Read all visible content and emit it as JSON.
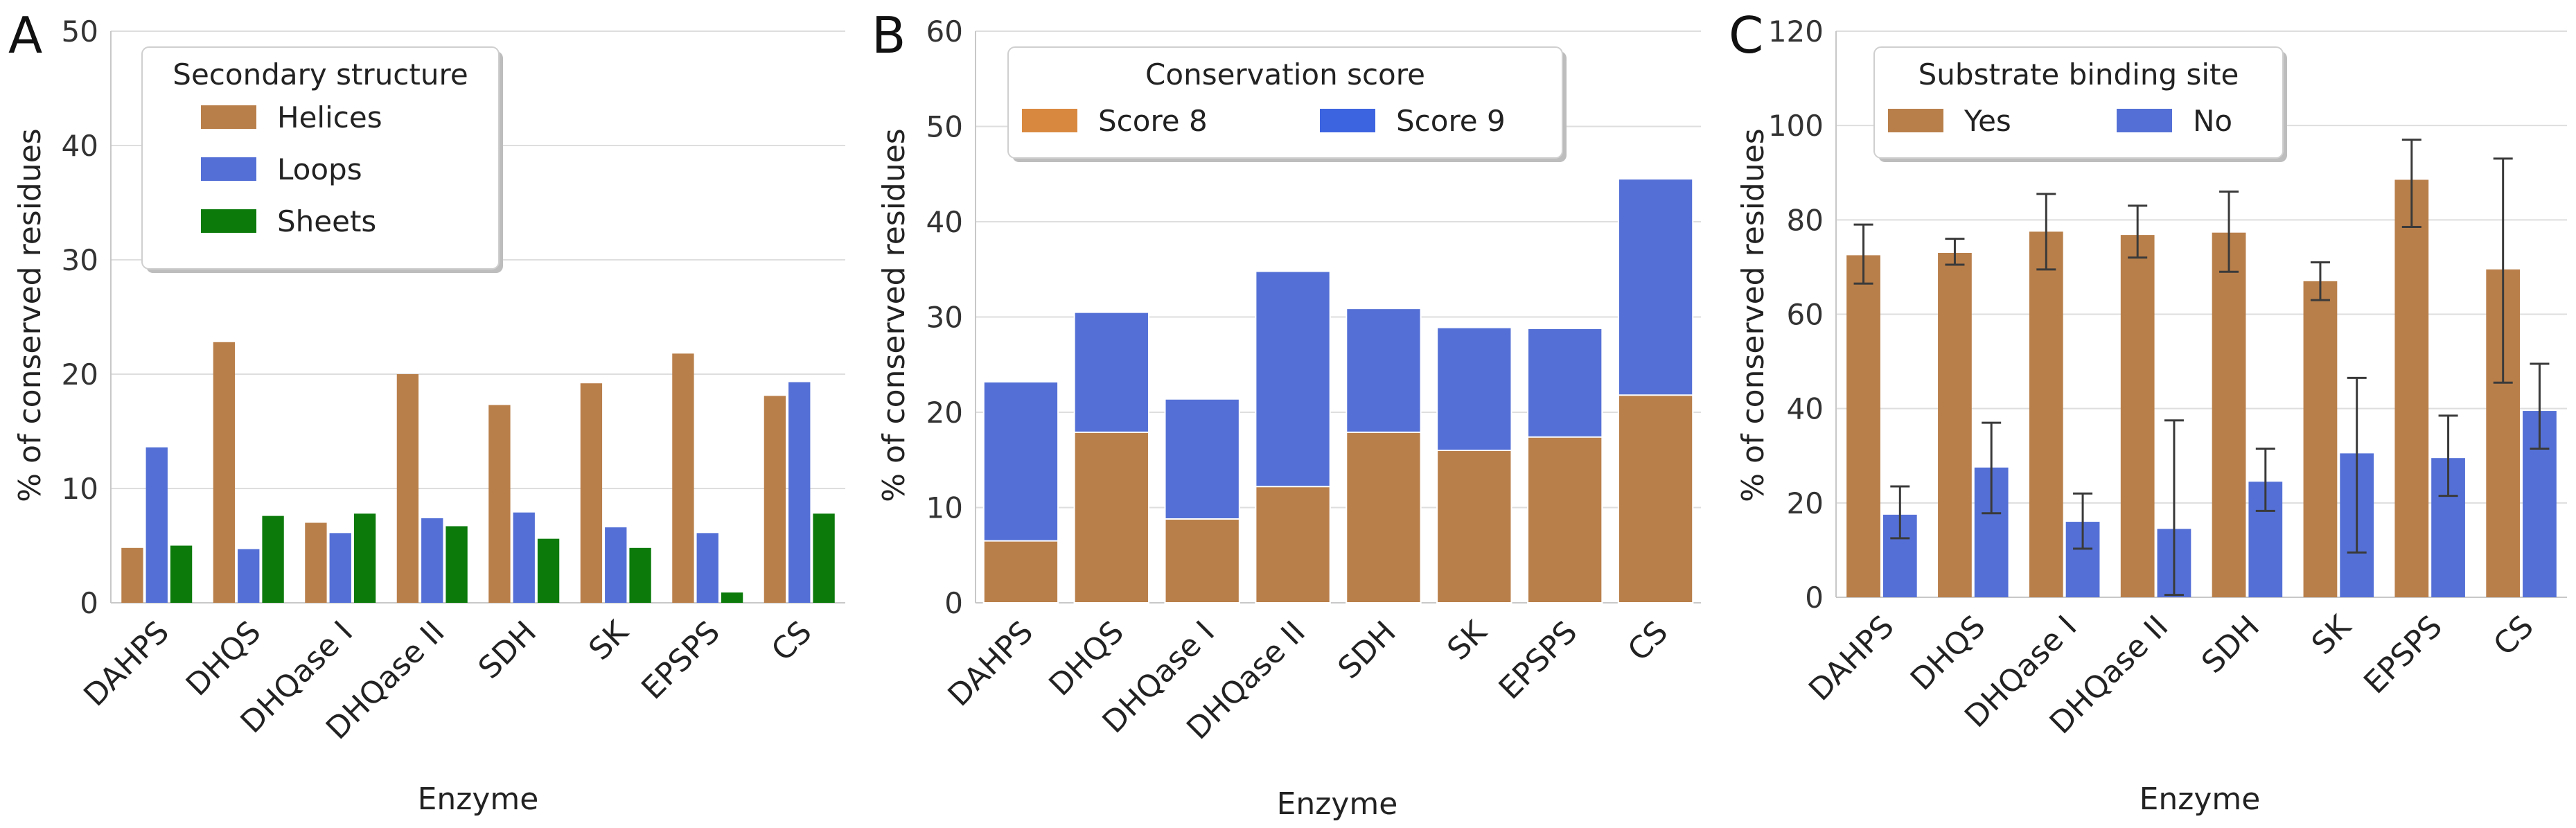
{
  "figure": {
    "panels": [
      {
        "letter": "A",
        "xlabel": "Enzyme",
        "ylabel": "% of conserved residues",
        "legend_title": "Secondary structure",
        "legend_labels": [
          "Helices",
          "Loops",
          "Sheets"
        ],
        "legend_colors": [
          "#b97f4a",
          "#5470d6",
          "#0b7a0b"
        ]
      },
      {
        "letter": "B",
        "xlabel": "Enzyme",
        "ylabel": "% of conserved residues",
        "legend_title": "Conservation score",
        "legend_labels": [
          "Score 8",
          "Score 9"
        ],
        "legend_colors": [
          "#d9893f",
          "#3d64e0"
        ]
      },
      {
        "letter": "C",
        "xlabel": "Enzyme",
        "ylabel": "% of conserved residues",
        "legend_title": "Substrate binding site",
        "legend_labels": [
          "Yes",
          "No"
        ],
        "legend_colors": [
          "#b97f4a",
          "#5470d6"
        ]
      }
    ]
  },
  "chart_data": [
    {
      "type": "bar",
      "mode": "grouped",
      "panel": "A",
      "title": "",
      "xlabel": "Enzyme",
      "ylabel": "% of conserved residues",
      "ylim": [
        0,
        50
      ],
      "yticks": [
        0,
        10,
        20,
        30,
        40,
        50
      ],
      "grid": "horizontal",
      "legend_placement": "upper-left",
      "categories": [
        "DAHPS",
        "DHQS",
        "DHQase I",
        "DHQase II",
        "SDH",
        "SK",
        "EPSPS",
        "CS"
      ],
      "series": [
        {
          "name": "Helices",
          "color": "#b97f4a",
          "values": [
            4.8,
            22.8,
            7.0,
            20.0,
            17.3,
            19.2,
            21.8,
            18.1
          ]
        },
        {
          "name": "Loops",
          "color": "#5470d6",
          "values": [
            13.6,
            4.7,
            6.1,
            7.4,
            7.9,
            6.6,
            6.1,
            19.3
          ]
        },
        {
          "name": "Sheets",
          "color": "#0b7a0b",
          "values": [
            5.0,
            7.6,
            7.8,
            6.7,
            5.6,
            4.8,
            0.9,
            7.8
          ]
        }
      ]
    },
    {
      "type": "bar",
      "mode": "overlaid",
      "panel": "B",
      "title": "",
      "xlabel": "Enzyme",
      "ylabel": "% of conserved residues",
      "ylim": [
        0,
        60
      ],
      "yticks": [
        0,
        10,
        20,
        30,
        40,
        50,
        60
      ],
      "grid": "horizontal",
      "legend_placement": "top",
      "categories": [
        "DAHPS",
        "DHQS",
        "DHQase I",
        "DHQase II",
        "SDH",
        "SK",
        "EPSPS",
        "CS"
      ],
      "series": [
        {
          "name": "Score 9",
          "color": "#5470d6",
          "values": [
            23.2,
            30.5,
            21.4,
            34.8,
            30.9,
            28.9,
            28.8,
            44.5
          ]
        },
        {
          "name": "Score 8",
          "color": "#b97f4a",
          "values": [
            6.5,
            17.9,
            8.8,
            12.2,
            17.9,
            16.0,
            17.4,
            21.8
          ]
        }
      ]
    },
    {
      "type": "bar",
      "mode": "grouped",
      "panel": "C",
      "title": "",
      "xlabel": "Enzyme",
      "ylabel": "% of conserved residues",
      "ylim": [
        0,
        120
      ],
      "yticks": [
        0,
        20,
        40,
        60,
        80,
        100,
        120
      ],
      "grid": "horizontal",
      "legend_placement": "top-left",
      "categories": [
        "DAHPS",
        "DHQS",
        "DHQase I",
        "DHQase II",
        "SDH",
        "SK",
        "EPSPS",
        "CS"
      ],
      "series": [
        {
          "name": "Yes",
          "color": "#b97f4a",
          "values": [
            72.5,
            73.0,
            77.5,
            76.8,
            77.3,
            67.0,
            88.5,
            69.5
          ],
          "err_low": [
            66.5,
            70.5,
            69.5,
            72.0,
            69.0,
            63.0,
            78.5,
            45.5
          ],
          "err_high": [
            79.0,
            76.0,
            85.5,
            83.0,
            86.0,
            71.0,
            97.0,
            93.0
          ]
        },
        {
          "name": "No",
          "color": "#5470d6",
          "values": [
            17.5,
            27.5,
            16.0,
            14.5,
            24.5,
            30.5,
            29.5,
            39.5
          ],
          "err_low": [
            12.5,
            17.8,
            10.3,
            0.5,
            18.3,
            9.5,
            21.5,
            31.5
          ],
          "err_high": [
            23.5,
            37.0,
            22.0,
            37.5,
            31.5,
            46.5,
            38.5,
            49.5
          ]
        }
      ]
    }
  ]
}
